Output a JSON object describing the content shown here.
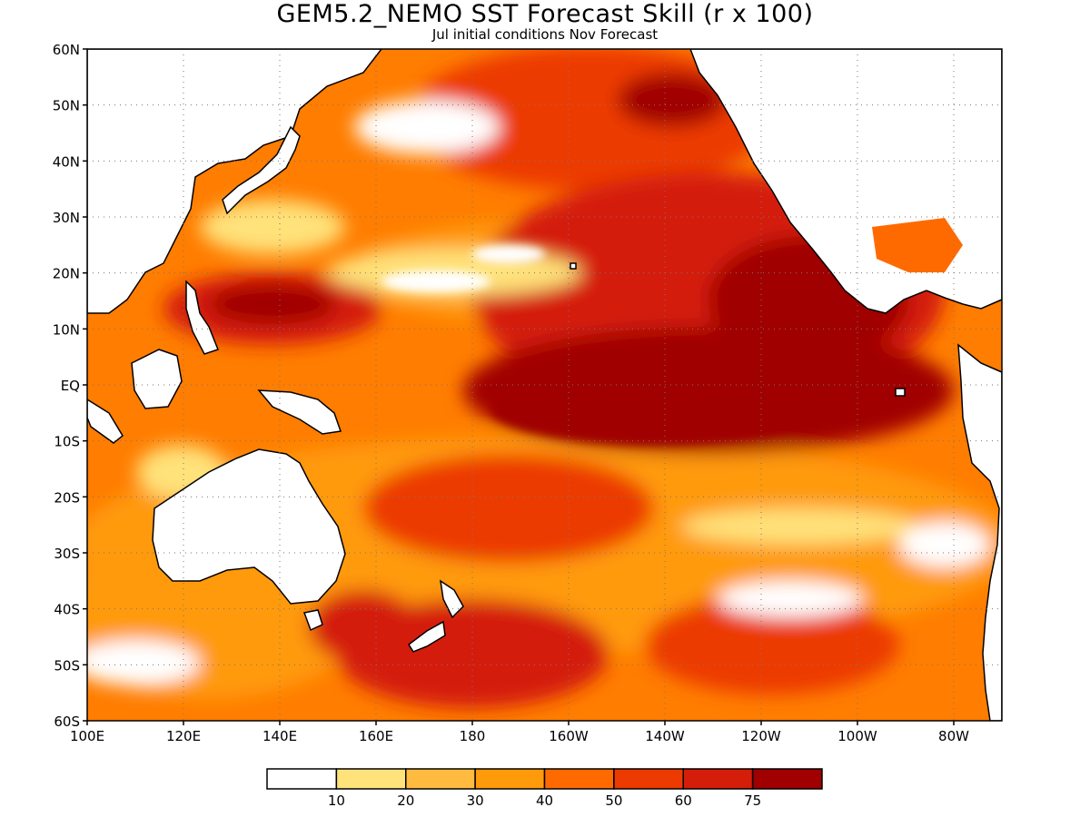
{
  "title": "GEM5.2_NEMO SST Forecast Skill (r x 100)",
  "subtitle": "Jul initial conditions  Nov Forecast",
  "chart_data": {
    "type": "heatmap",
    "lat_range": [
      -60,
      60
    ],
    "lon_range": [
      100,
      290
    ],
    "lat_ticks": [
      "60N",
      "50N",
      "40N",
      "30N",
      "20N",
      "10N",
      "EQ",
      "10S",
      "20S",
      "30S",
      "40S",
      "50S",
      "60S"
    ],
    "lon_ticks": [
      "100E",
      "120E",
      "140E",
      "160E",
      "180",
      "160W",
      "140W",
      "120W",
      "100W",
      "80W"
    ],
    "grid": true,
    "legend": {
      "placement": "bottom",
      "bins": [
        {
          "color": "#ffffff"
        },
        {
          "color": "#ffe27a"
        },
        {
          "color": "#ffbb3f"
        },
        {
          "color": "#ff9a0a"
        },
        {
          "color": "#ff6a00"
        },
        {
          "color": "#ec3a00"
        },
        {
          "color": "#d41e0a"
        },
        {
          "color": "#a00000"
        }
      ],
      "labels": [
        "10",
        "20",
        "30",
        "40",
        "50",
        "60",
        "75"
      ]
    }
  }
}
